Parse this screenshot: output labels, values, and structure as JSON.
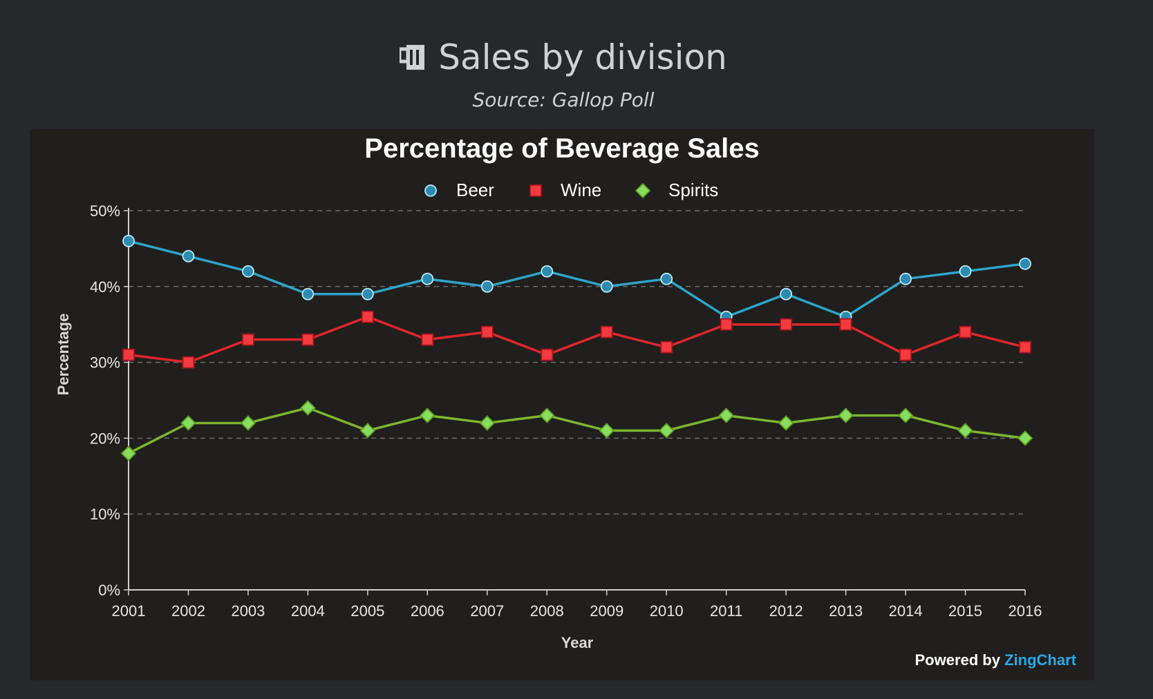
{
  "header": {
    "title": "Sales by division",
    "subtitle": "Source: Gallop Poll",
    "title_icon": "beer-mug-icon"
  },
  "footer": {
    "powered_prefix": "Powered by",
    "powered_brand": "ZingChart"
  },
  "chart_data": {
    "type": "line",
    "title": "Percentage of Beverage Sales",
    "xlabel": "Year",
    "ylabel": "Percentage",
    "ylim": [
      0,
      50
    ],
    "y_ticks": [
      "0%",
      "10%",
      "20%",
      "30%",
      "40%",
      "50%"
    ],
    "grid": true,
    "legend_position": "top-center",
    "x": [
      "2001",
      "2002",
      "2003",
      "2004",
      "2005",
      "2006",
      "2007",
      "2008",
      "2009",
      "2010",
      "2011",
      "2012",
      "2013",
      "2014",
      "2015",
      "2016"
    ],
    "series": [
      {
        "name": "Beer",
        "color": "#2ea5c9",
        "marker": "circle",
        "values": [
          46,
          44,
          42,
          39,
          39,
          41,
          40,
          42,
          40,
          41,
          36,
          39,
          36,
          41,
          42,
          43
        ]
      },
      {
        "name": "Wine",
        "color": "#e0262b",
        "marker": "square",
        "values": [
          31,
          30,
          33,
          33,
          36,
          33,
          34,
          31,
          34,
          32,
          35,
          35,
          35,
          31,
          34,
          32
        ]
      },
      {
        "name": "Spirits",
        "color": "#7fb630",
        "marker": "diamond",
        "values": [
          18,
          22,
          22,
          24,
          21,
          23,
          22,
          23,
          21,
          21,
          23,
          22,
          23,
          23,
          21,
          20
        ]
      }
    ]
  }
}
